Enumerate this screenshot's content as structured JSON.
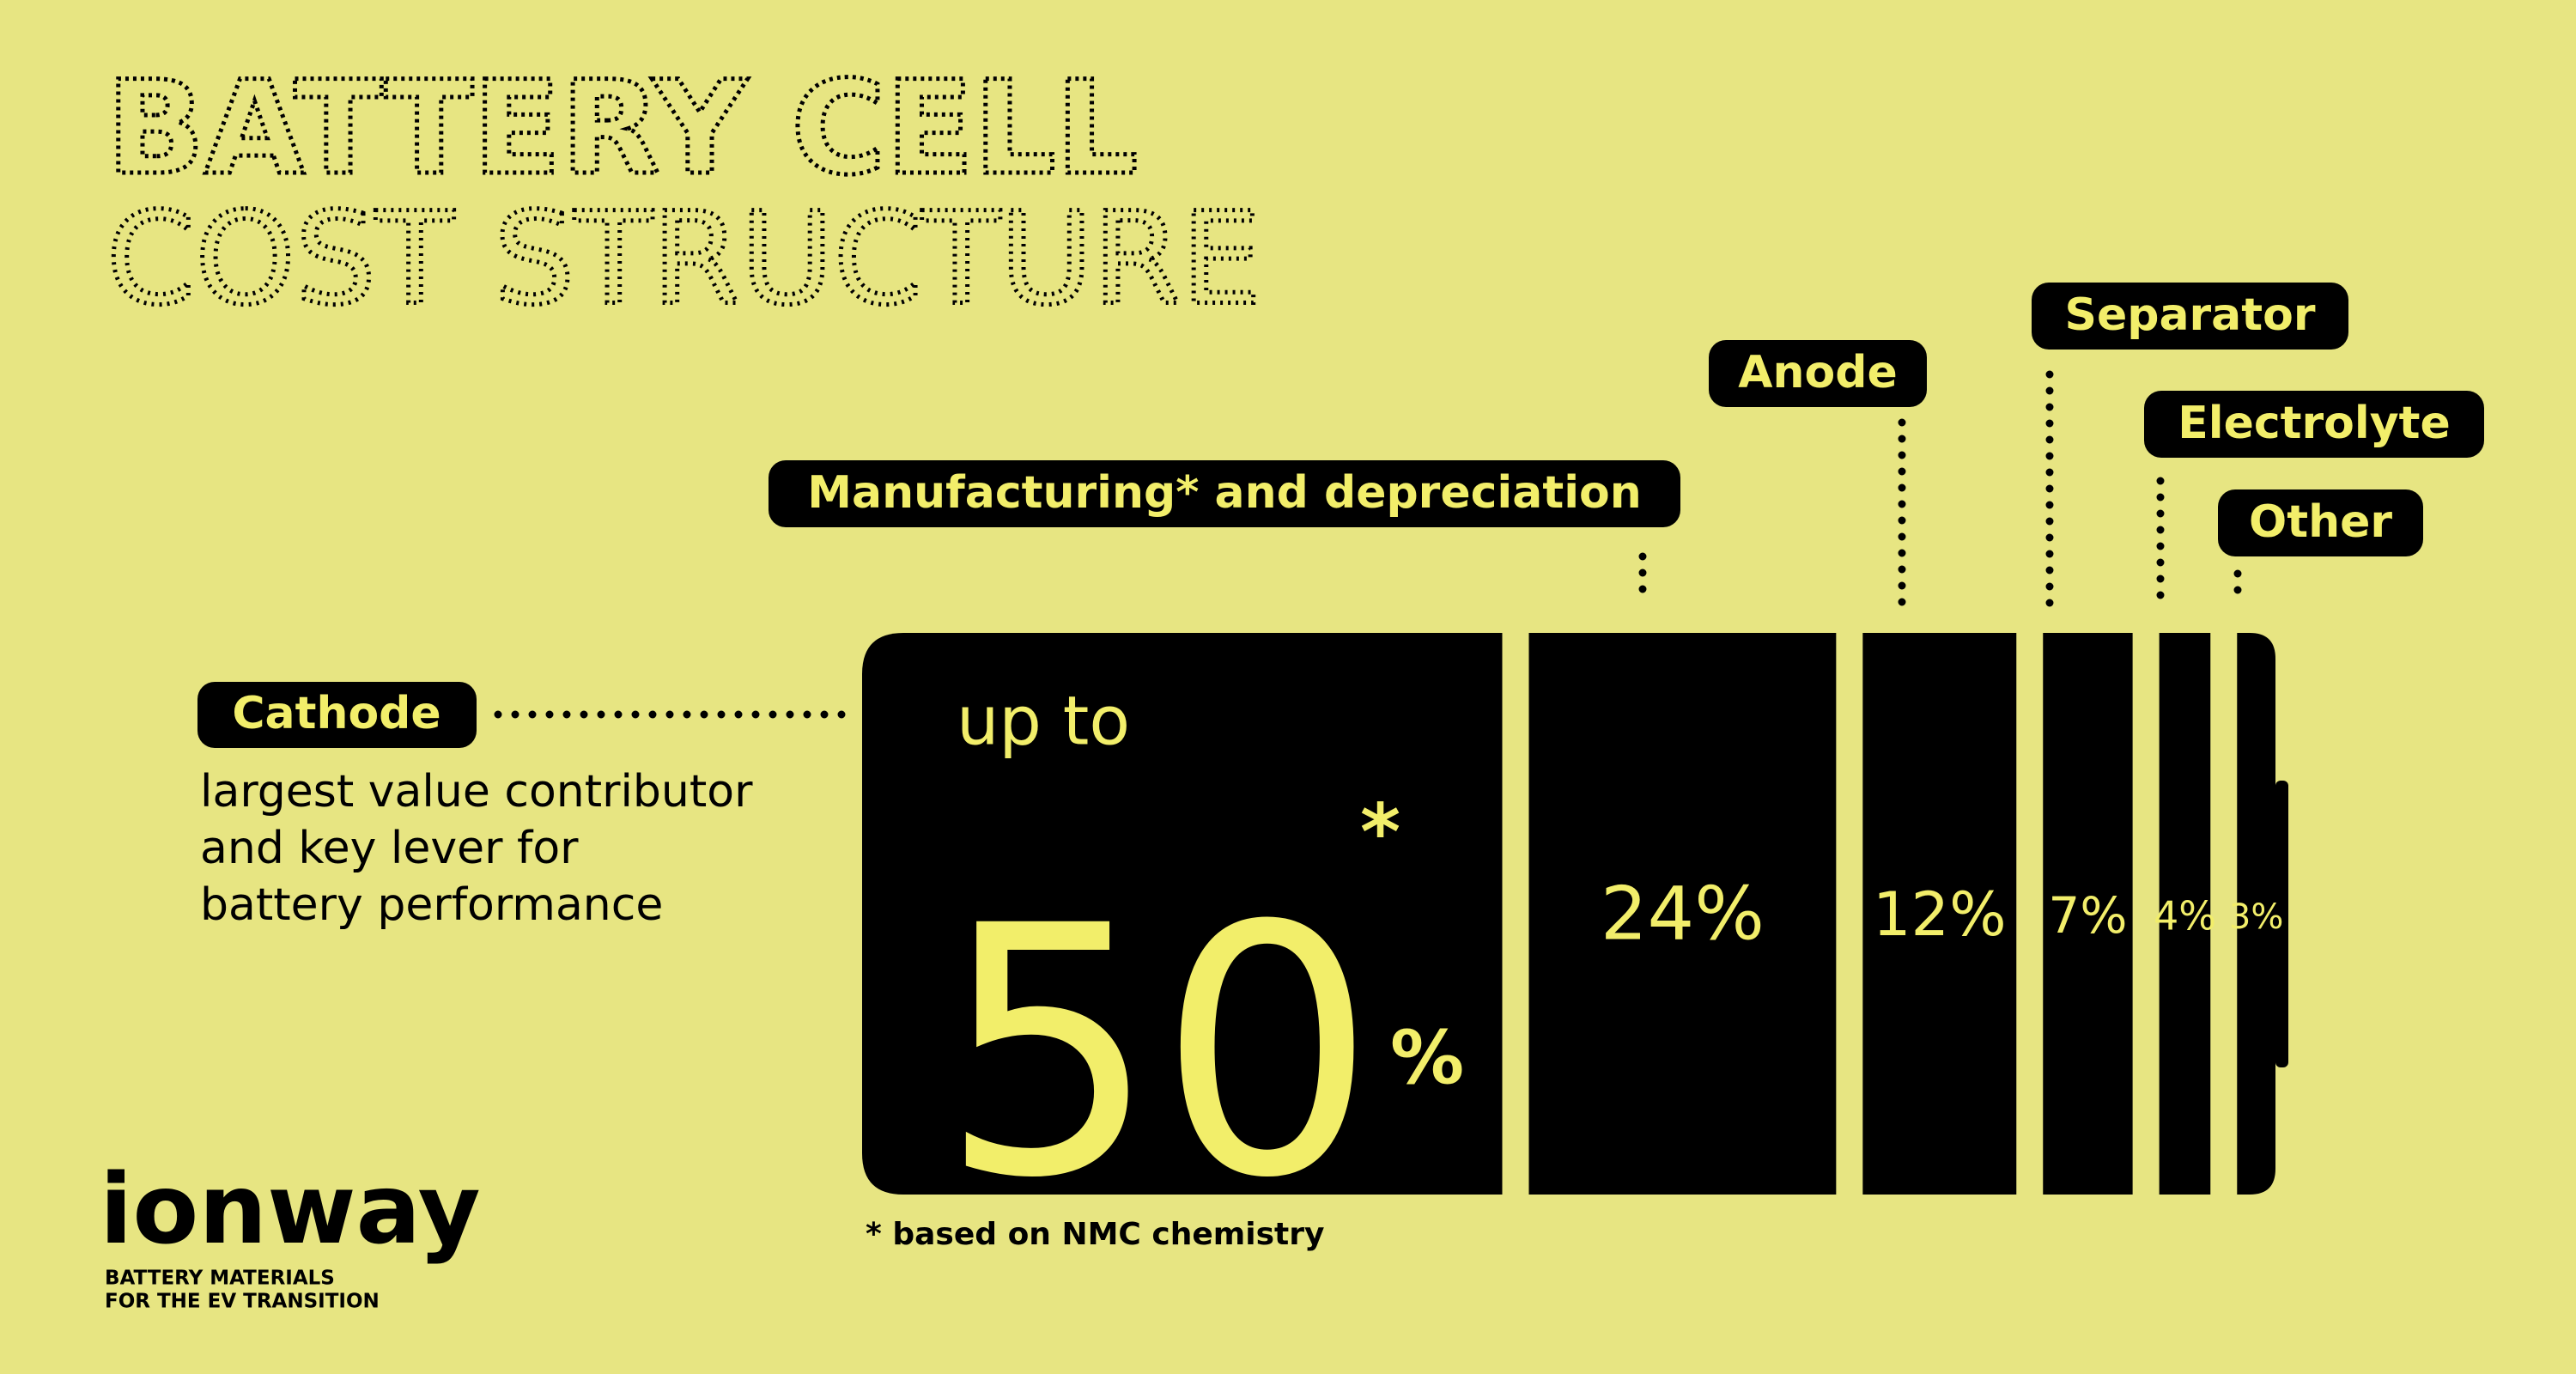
{
  "header": {
    "title_line1": "BATTERY CELL",
    "title_line2": "COST STRUCTURE"
  },
  "chart_data": {
    "type": "battery",
    "categories": [
      "Cathode",
      "Manufacturing* and depreciation",
      "Anode",
      "Separator",
      "Electrolyte",
      "Other"
    ],
    "values": [
      50,
      24,
      12,
      7,
      4,
      3
    ],
    "value_labels": [
      "50",
      "24%",
      "12%",
      "7%",
      "4%",
      "3%"
    ],
    "color": "#000000",
    "label_color": "#f2ee6a",
    "cathode_prefix": "up to",
    "cathode_asterisk": "*",
    "cathode_unit": "%",
    "cathode_note": [
      "largest value contributor",
      "and key lever for",
      "battery performance"
    ],
    "footnote": "* based on NMC chemistry"
  },
  "logo": {
    "name": "ionway",
    "tagline": [
      "BATTERY MATERIALS",
      "FOR THE EV TRANSITION"
    ]
  }
}
